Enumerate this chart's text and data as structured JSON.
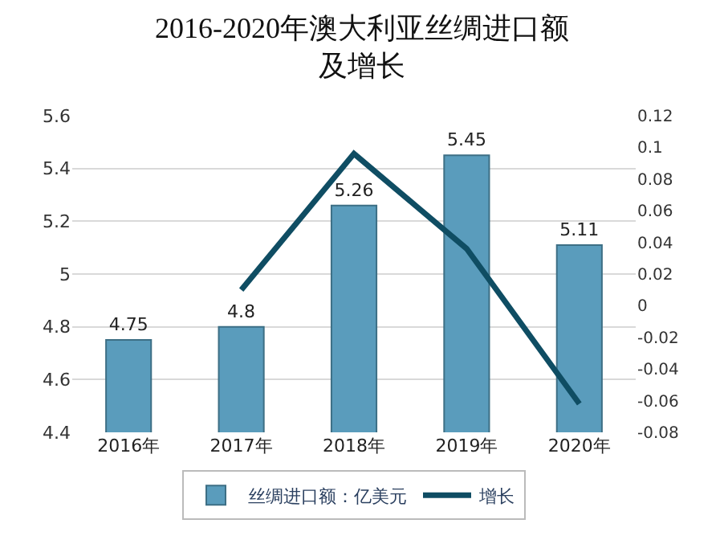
{
  "chart_data": {
    "type": "bar",
    "title": "2016-2020年澳大利亚丝绸进口额及增长",
    "categories": [
      "2016年",
      "2017年",
      "2018年",
      "2019年",
      "2020年"
    ],
    "series": [
      {
        "name": "丝绸进口额：亿美元",
        "color": "#5a9cbc",
        "values": [
          4.75,
          4.8,
          5.26,
          5.45,
          5.11
        ],
        "value_labels": [
          "4.75",
          "4.8",
          "5.26",
          "5.45",
          "5.11"
        ]
      },
      {
        "name": "增长",
        "type": "line",
        "axis": "y2",
        "color": "#0f4d63",
        "values": [
          null,
          0.01,
          0.096,
          0.036,
          -0.062
        ]
      }
    ],
    "ylim": [
      4.4,
      5.6
    ],
    "yticks": [
      4.4,
      4.6,
      4.8,
      5,
      5.2,
      5.4,
      5.6
    ],
    "y2lim": [
      -0.08,
      0.12
    ],
    "y2ticks": [
      -0.08,
      -0.06,
      -0.04,
      -0.02,
      0,
      0.02,
      0.04,
      0.06,
      0.08,
      0.1,
      0.12
    ],
    "grid": "y",
    "legend": "bottom",
    "marker": "none"
  }
}
